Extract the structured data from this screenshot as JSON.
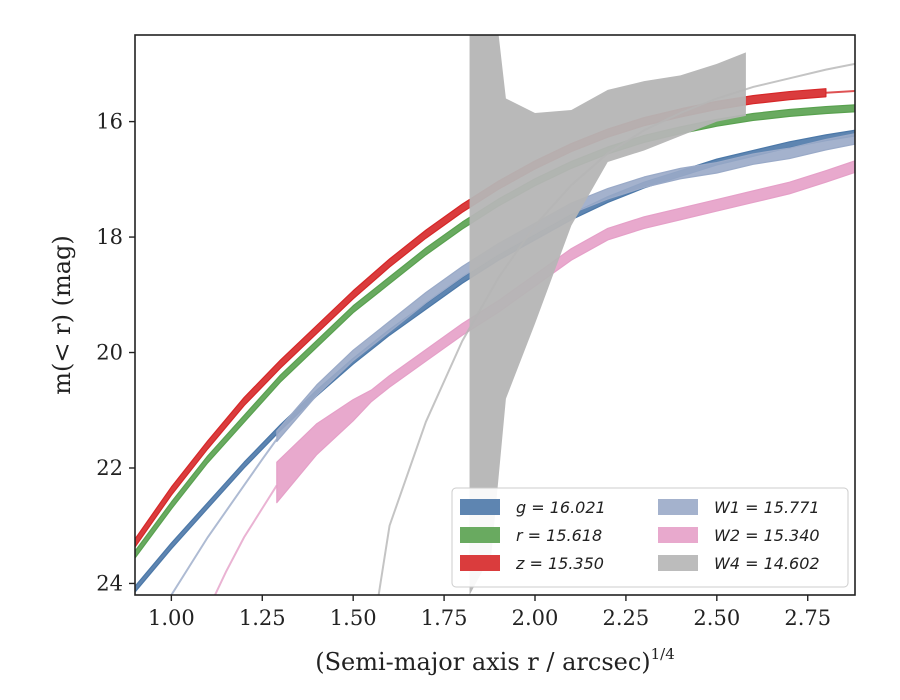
{
  "chart_data": {
    "type": "line",
    "xlabel": "(Semi-major axis r / arcsec)",
    "xlabel_superscript": "1/4",
    "ylabel": "m(< r) (mag)",
    "xlim": [
      0.9,
      2.88
    ],
    "ylim": [
      24.2,
      14.5
    ],
    "y_inverted": true,
    "x_ticks": [
      "1.00",
      "1.25",
      "1.50",
      "1.75",
      "2.00",
      "2.25",
      "2.50",
      "2.75"
    ],
    "y_ticks": [
      "16",
      "18",
      "20",
      "22",
      "24"
    ],
    "grid": false,
    "legend_placement": "lower-right",
    "series": [
      {
        "name": "g = 16.021",
        "color": "#4c78a8",
        "band": {
          "x": [
            0.9,
            1.0,
            1.1,
            1.2,
            1.3,
            1.4,
            1.5,
            1.6,
            1.7,
            1.8,
            1.9,
            2.0,
            2.1,
            2.2,
            2.3,
            2.4,
            2.5,
            2.6,
            2.7,
            2.8,
            2.88
          ],
          "y": [
            24.1,
            23.35,
            22.65,
            21.95,
            21.3,
            20.7,
            20.15,
            19.65,
            19.2,
            18.75,
            18.35,
            18.0,
            17.65,
            17.35,
            17.1,
            16.9,
            16.7,
            16.55,
            16.4,
            16.28,
            16.2
          ],
          "half_width": 0.05
        },
        "model": null
      },
      {
        "name": "r = 15.618",
        "color": "#59a14f",
        "band": {
          "x": [
            0.9,
            1.0,
            1.1,
            1.2,
            1.3,
            1.4,
            1.5,
            1.6,
            1.7,
            1.8,
            1.9,
            2.0,
            2.1,
            2.2,
            2.3,
            2.4,
            2.5,
            2.6,
            2.7,
            2.8,
            2.88
          ],
          "y": [
            23.5,
            22.65,
            21.85,
            21.15,
            20.45,
            19.85,
            19.25,
            18.75,
            18.25,
            17.8,
            17.4,
            17.05,
            16.75,
            16.5,
            16.3,
            16.15,
            16.02,
            15.92,
            15.85,
            15.8,
            15.77
          ],
          "half_width": 0.06
        },
        "model": null
      },
      {
        "name": "z = 15.350",
        "color": "#d62728",
        "band": {
          "x": [
            0.9,
            1.0,
            1.1,
            1.2,
            1.3,
            1.4,
            1.5,
            1.6,
            1.7,
            1.8,
            1.9,
            2.0,
            2.1,
            2.2,
            2.3,
            2.4,
            2.5,
            2.6,
            2.7,
            2.8
          ],
          "y": [
            23.3,
            22.4,
            21.6,
            20.85,
            20.2,
            19.6,
            19.0,
            18.45,
            17.95,
            17.5,
            17.1,
            16.75,
            16.45,
            16.2,
            16.0,
            15.85,
            15.72,
            15.62,
            15.55,
            15.5
          ],
          "half_width": 0.07
        },
        "model": {
          "x": [
            2.8,
            2.88
          ],
          "y": [
            15.5,
            15.47
          ]
        }
      },
      {
        "name": "W1 = 15.771",
        "color": "#9aaac8",
        "band": {
          "x": [
            1.29,
            1.4,
            1.5,
            1.6,
            1.7,
            1.8,
            1.9,
            2.0,
            2.1,
            2.2,
            2.3,
            2.4,
            2.5,
            2.6,
            2.7,
            2.8,
            2.88
          ],
          "y": [
            21.45,
            20.65,
            20.05,
            19.55,
            19.05,
            18.6,
            18.2,
            17.85,
            17.5,
            17.25,
            17.05,
            16.9,
            16.8,
            16.65,
            16.55,
            16.4,
            16.3
          ],
          "half_width": 0.09
        },
        "model": {
          "x": [
            1.0,
            1.05,
            1.1,
            1.15,
            1.2,
            1.25,
            1.29
          ],
          "y": [
            24.2,
            23.7,
            23.2,
            22.75,
            22.3,
            21.85,
            21.5
          ]
        }
      },
      {
        "name": "W2 = 15.340",
        "color": "#e5a0c8",
        "band": {
          "x": [
            1.29,
            1.4,
            1.5,
            1.55,
            1.6,
            1.7,
            1.8,
            1.9,
            2.0,
            2.1,
            2.2,
            2.3,
            2.4,
            2.5,
            2.6,
            2.7,
            2.8,
            2.88
          ],
          "y": [
            22.25,
            21.5,
            21.0,
            20.75,
            20.5,
            20.05,
            19.6,
            19.2,
            18.75,
            18.3,
            17.95,
            17.75,
            17.6,
            17.45,
            17.3,
            17.15,
            16.95,
            16.78
          ],
          "half_width_start": 0.35,
          "half_width": 0.1
        },
        "model": {
          "x": [
            1.12,
            1.15,
            1.2,
            1.25,
            1.29
          ],
          "y": [
            24.2,
            23.8,
            23.2,
            22.7,
            22.3
          ]
        }
      },
      {
        "name": "W4 = 14.602",
        "color": "#b5b5b5",
        "band": {
          "x": [
            1.82,
            1.82,
            1.9,
            1.92,
            2.0,
            2.1,
            2.2,
            2.3,
            2.4,
            2.5,
            2.58,
            2.58,
            2.5,
            2.4,
            2.3,
            2.2,
            2.1,
            2.0,
            1.92,
            1.88,
            1.82
          ],
          "y": [
            24.2,
            14.5,
            14.5,
            15.6,
            15.85,
            15.8,
            15.45,
            15.3,
            15.2,
            15.0,
            14.8,
            15.9,
            16.0,
            16.25,
            16.5,
            16.7,
            17.8,
            19.5,
            20.8,
            23.5,
            24.2
          ],
          "polygon": true
        },
        "model": {
          "x": [
            1.57,
            1.6,
            1.7,
            1.8,
            1.9,
            2.0,
            2.1,
            2.2,
            2.3,
            2.4,
            2.5,
            2.6,
            2.7,
            2.8,
            2.88
          ],
          "y": [
            24.2,
            23.0,
            21.2,
            19.8,
            18.7,
            17.8,
            17.1,
            16.55,
            16.15,
            15.85,
            15.6,
            15.4,
            15.25,
            15.1,
            15.0
          ]
        }
      }
    ]
  },
  "legend": {
    "entries": [
      {
        "label": "g = 16.021",
        "color": "#4c78a8"
      },
      {
        "label": "r = 15.618",
        "color": "#59a14f"
      },
      {
        "label": "z = 15.350",
        "color": "#d62728"
      },
      {
        "label": "W1 = 15.771",
        "color": "#9aaac8"
      },
      {
        "label": "W2 = 15.340",
        "color": "#e5a0c8"
      },
      {
        "label": "W4 = 14.602",
        "color": "#b5b5b5"
      }
    ]
  }
}
